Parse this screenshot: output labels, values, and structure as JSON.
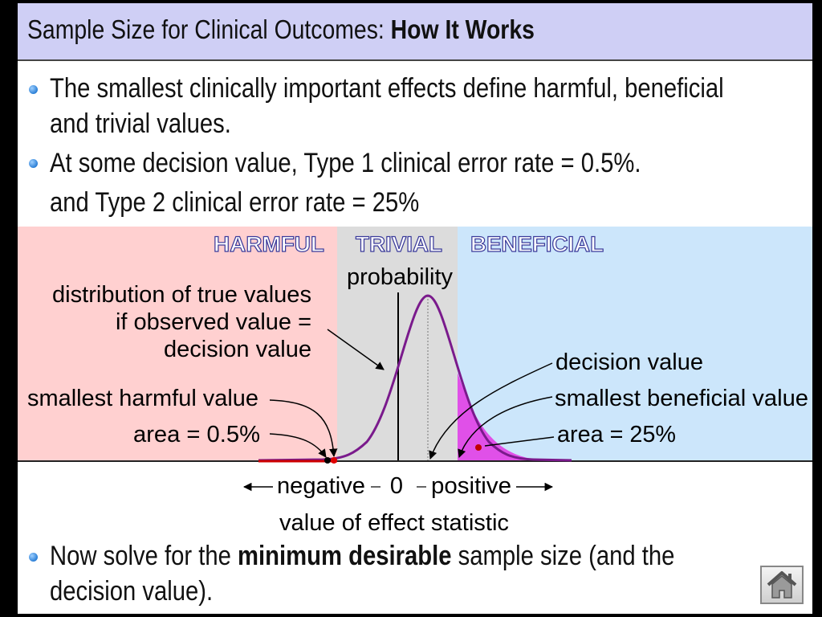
{
  "title": {
    "normal": "Sample Size for Clinical Outcomes: ",
    "bold": "How It Works"
  },
  "bullets": {
    "b1_line1": "The smallest clinically important effects define harmful, beneficial",
    "b1_line2": "and trivial values.",
    "b2_line1": "At some decision value, Type 1 clinical error rate = 0.5%.",
    "b2_line2": "and Type 2 clinical error rate = 25%",
    "b3_pre": "Now solve for the ",
    "b3_bold": "minimum desirable",
    "b3_post": " sample size (and the",
    "b3_line2": "decision value)."
  },
  "diagram": {
    "zones": {
      "harmful": "HARMFUL",
      "trivial": "TRIVIAL",
      "beneficial": "BENEFICIAL"
    },
    "probability": "probability",
    "distribution_label": [
      "distribution of true values",
      "if observed value =",
      "decision value"
    ],
    "smallest_harmful": "smallest harmful value",
    "area_harmful": "area = 0.5%",
    "decision_value": "decision value",
    "smallest_beneficial": "smallest beneficial value",
    "area_beneficial": "area = 25%",
    "axis": {
      "negative": "negative",
      "zero": "0",
      "positive": "positive"
    },
    "axis_title": "value of effect statistic",
    "colors": {
      "harmful": "#ffd0d0",
      "trivial": "#dcdcdc",
      "beneficial": "#cce6fb",
      "curve": "#7a1a8c",
      "tail_fill": "#e050e8",
      "title_bar": "#cfcff5"
    }
  },
  "icons": {
    "home": "home-icon",
    "bullet": "bullet-icon"
  }
}
